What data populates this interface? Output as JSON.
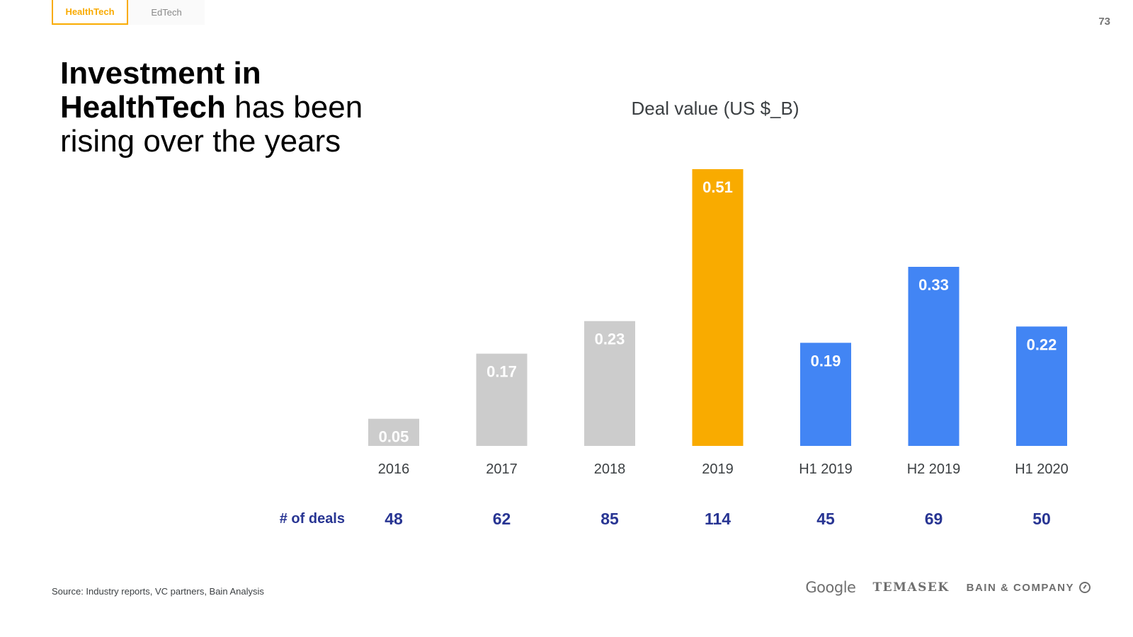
{
  "tabs": [
    {
      "label": "HealthTech",
      "active": true
    },
    {
      "label": "EdTech",
      "active": false
    }
  ],
  "page_number": "73",
  "title": {
    "bold": "Investment in HealthTech",
    "rest": "has been rising over the years"
  },
  "title_line1": "Investment in",
  "title_line2_bold": "HealthTech",
  "title_line2_rest": " has been",
  "title_line3": "rising over the years",
  "colors": {
    "grey": "#cccccc",
    "highlight": "#f9ab00",
    "blue": "#4285f4",
    "deals": "#283593"
  },
  "chart_data": {
    "type": "bar",
    "title": "Deal value (US $_B)",
    "categories": [
      "2016",
      "2017",
      "2018",
      "2019",
      "H1 2019",
      "H2 2019",
      "H1 2020"
    ],
    "values": [
      0.05,
      0.17,
      0.23,
      0.51,
      0.19,
      0.33,
      0.22
    ],
    "value_labels": [
      "0.05",
      "0.17",
      "0.23",
      "0.51",
      "0.19",
      "0.33",
      "0.22"
    ],
    "bar_colors": [
      "grey",
      "grey",
      "grey",
      "highlight",
      "blue",
      "blue",
      "blue"
    ],
    "ylim": [
      0,
      0.51
    ],
    "xlabel": "",
    "ylabel": "",
    "deals_label": "# of deals",
    "deals": [
      "48",
      "62",
      "85",
      "114",
      "45",
      "69",
      "50"
    ]
  },
  "source": "Source: Industry reports, VC partners, Bain Analysis",
  "logos": {
    "google": "Google",
    "temasek": "TEMASEK",
    "bain": "BAIN & COMPANY"
  }
}
